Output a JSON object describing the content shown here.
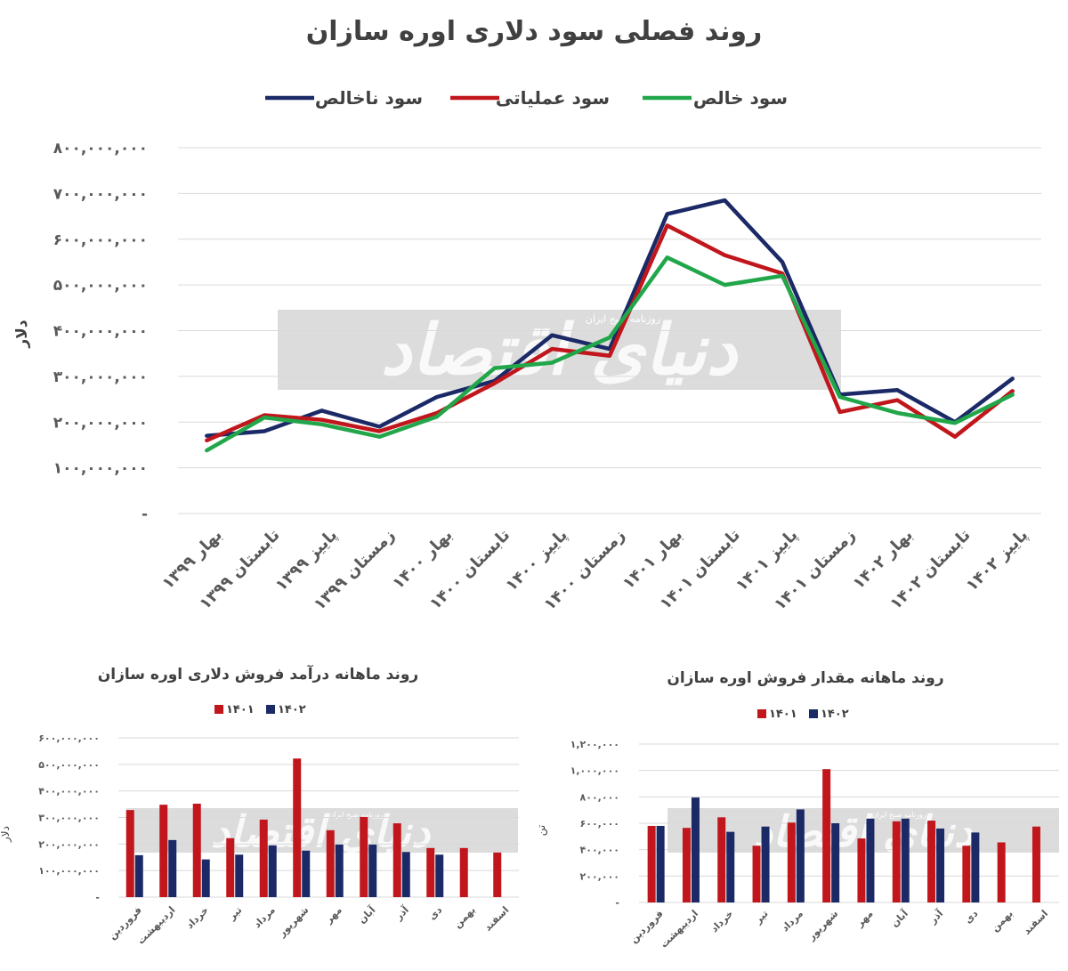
{
  "watermark": {
    "main": "دنیای اقتصاد",
    "sub": "روزنامه صبح ایران"
  },
  "chart_data": [
    {
      "type": "line",
      "title": "روند فصلی سود دلاری اوره سازان",
      "ylabel": "دلار",
      "ylim": [
        0,
        800000000
      ],
      "yticks": [
        "-",
        "۱۰۰,۰۰۰,۰۰۰",
        "۲۰۰,۰۰۰,۰۰۰",
        "۳۰۰,۰۰۰,۰۰۰",
        "۴۰۰,۰۰۰,۰۰۰",
        "۵۰۰,۰۰۰,۰۰۰",
        "۶۰۰,۰۰۰,۰۰۰",
        "۷۰۰,۰۰۰,۰۰۰",
        "۸۰۰,۰۰۰,۰۰۰"
      ],
      "legend_position": "top",
      "grid": true,
      "categories": [
        "بهار ۱۳۹۹",
        "تابستان ۱۳۹۹",
        "پاییز ۱۳۹۹",
        "زمستان ۱۳۹۹",
        "بهار ۱۴۰۰",
        "تابستان ۱۴۰۰",
        "پاییز ۱۴۰۰",
        "زمستان ۱۴۰۰",
        "بهار ۱۴۰۱",
        "تابستان ۱۴۰۱",
        "پاییز ۱۴۰۱",
        "زمستان ۱۴۰۱",
        "بهار ۱۴۰۲",
        "تابستان ۱۴۰۲",
        "پاییز ۱۴۰۲"
      ],
      "series": [
        {
          "name": "سود ناخالص",
          "color": "#1b2a66",
          "values": [
            170000000,
            180000000,
            225000000,
            190000000,
            255000000,
            290000000,
            390000000,
            360000000,
            655000000,
            685000000,
            550000000,
            260000000,
            270000000,
            200000000,
            295000000
          ]
        },
        {
          "name": "سود عملیاتی",
          "color": "#c0161c",
          "values": [
            160000000,
            215000000,
            205000000,
            180000000,
            220000000,
            285000000,
            360000000,
            345000000,
            630000000,
            565000000,
            525000000,
            222000000,
            248000000,
            168000000,
            268000000
          ]
        },
        {
          "name": "سود خالص",
          "color": "#21a64a",
          "values": [
            138000000,
            210000000,
            195000000,
            168000000,
            212000000,
            318000000,
            330000000,
            385000000,
            560000000,
            500000000,
            520000000,
            255000000,
            220000000,
            198000000,
            260000000
          ]
        }
      ]
    },
    {
      "type": "bar",
      "title": "روند ماهانه درآمد فروش دلاری اوره سازان",
      "ylabel": "دلار",
      "ylim": [
        0,
        600000000
      ],
      "yticks": [
        "-",
        "۱۰۰,۰۰۰,۰۰۰",
        "۲۰۰,۰۰۰,۰۰۰",
        "۳۰۰,۰۰۰,۰۰۰",
        "۴۰۰,۰۰۰,۰۰۰",
        "۵۰۰,۰۰۰,۰۰۰",
        "۶۰۰,۰۰۰,۰۰۰"
      ],
      "legend_position": "top",
      "categories": [
        "فروردین",
        "اردیبهشت",
        "خرداد",
        "تیر",
        "مرداد",
        "شهریور",
        "مهر",
        "آبان",
        "آذر",
        "دی",
        "بهمن",
        "اسفند"
      ],
      "series": [
        {
          "name": "۱۴۰۱",
          "color": "#c0161c",
          "values": [
            328000000,
            348000000,
            352000000,
            222000000,
            292000000,
            522000000,
            252000000,
            302000000,
            278000000,
            185000000,
            185000000,
            168000000
          ]
        },
        {
          "name": "۱۴۰۲",
          "color": "#1b2a66",
          "values": [
            158000000,
            215000000,
            142000000,
            160000000,
            195000000,
            175000000,
            198000000,
            198000000,
            170000000,
            160000000,
            null,
            null
          ]
        }
      ]
    },
    {
      "type": "bar",
      "title": "روند ماهانه مقدار فروش اوره سازان",
      "ylabel": "تن",
      "ylim": [
        0,
        1200000
      ],
      "yticks": [
        "-",
        "۲۰۰,۰۰۰",
        "۴۰۰,۰۰۰",
        "۶۰۰,۰۰۰",
        "۸۰۰,۰۰۰",
        "۱,۰۰۰,۰۰۰",
        "۱,۲۰۰,۰۰۰"
      ],
      "legend_position": "top",
      "categories": [
        "فروردین",
        "اردیبهشت",
        "خرداد",
        "تیر",
        "مرداد",
        "شهریور",
        "مهر",
        "آبان",
        "آذر",
        "دی",
        "بهمن",
        "اسفند"
      ],
      "series": [
        {
          "name": "۱۴۰۱",
          "color": "#c0161c",
          "values": [
            580000,
            565000,
            645000,
            430000,
            605000,
            1010000,
            485000,
            615000,
            620000,
            430000,
            455000,
            575000
          ]
        },
        {
          "name": "۱۴۰۲",
          "color": "#1b2a66",
          "values": [
            580000,
            795000,
            535000,
            575000,
            705000,
            600000,
            635000,
            635000,
            560000,
            530000,
            null,
            null
          ]
        }
      ]
    }
  ]
}
